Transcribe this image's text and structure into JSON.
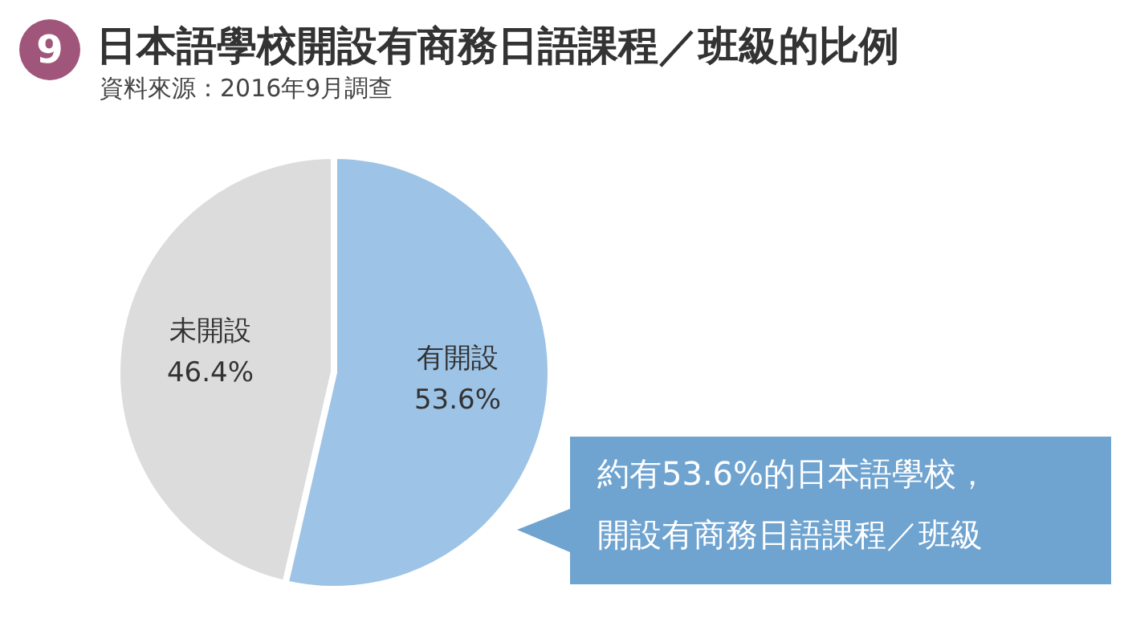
{
  "chart_data": {
    "type": "pie",
    "title": "日本語學校開設有商務日語課程／班級的比例",
    "subtitle": "資料來源：2016年9月調查",
    "categories": [
      "未開設",
      "有開設"
    ],
    "values": [
      46.4,
      53.6
    ],
    "value_labels": [
      "46.4%",
      "53.6%"
    ],
    "colors": [
      "#dcdcdc",
      "#9dc3e6"
    ],
    "annotations": [
      "9",
      "約有53.6%的日本語學校，",
      "開設有商務日語課程／班級"
    ]
  }
}
